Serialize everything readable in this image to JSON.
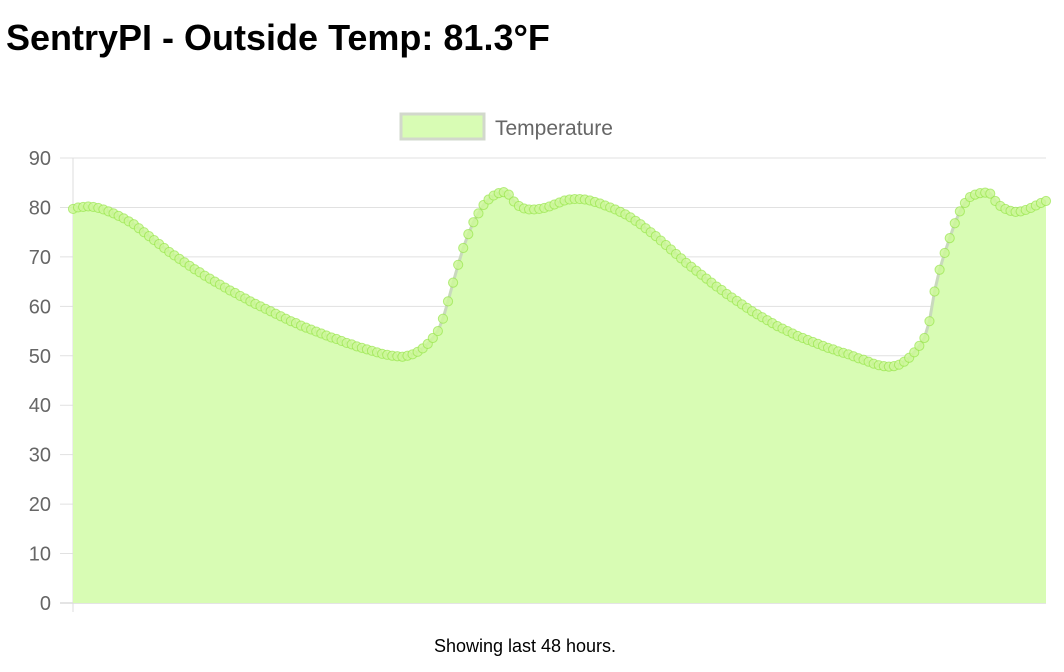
{
  "header": {
    "title": "SentryPI - Outside Temp: 81.3°F"
  },
  "footer": {
    "caption": "Showing last 48 hours."
  },
  "colors": {
    "fill": "#d8fcb4",
    "line": "#c9d9bd",
    "point_fill": "#cdf79a",
    "point_stroke": "#8fe23e",
    "grid": "#e1e1e1",
    "axis_text": "#666666"
  },
  "chart_data": {
    "type": "line",
    "title": "",
    "xlabel": "",
    "ylabel": "",
    "ylim": [
      0,
      90
    ],
    "y_ticks": [
      0,
      10,
      20,
      30,
      40,
      50,
      60,
      70,
      80,
      90
    ],
    "grid": true,
    "legend_position": "top-center",
    "x_tick_labels_visible": false,
    "series": [
      {
        "name": "Temperature",
        "filled": true,
        "values": [
          79.7,
          80.0,
          80.1,
          80.2,
          80.1,
          79.9,
          79.6,
          79.2,
          78.8,
          78.3,
          77.8,
          77.2,
          76.6,
          75.8,
          75.0,
          74.2,
          73.4,
          72.6,
          71.8,
          71.0,
          70.3,
          69.6,
          68.9,
          68.2,
          67.5,
          66.9,
          66.2,
          65.6,
          65.0,
          64.4,
          63.8,
          63.2,
          62.7,
          62.1,
          61.6,
          61.0,
          60.5,
          60.0,
          59.5,
          59.0,
          58.5,
          58.0,
          57.5,
          57.0,
          56.6,
          56.1,
          55.7,
          55.3,
          54.9,
          54.5,
          54.1,
          53.7,
          53.4,
          53.0,
          52.6,
          52.3,
          51.9,
          51.6,
          51.3,
          51.0,
          50.7,
          50.4,
          50.2,
          50.0,
          49.9,
          49.8,
          50.0,
          50.3,
          50.8,
          51.5,
          52.4,
          53.6,
          55.0,
          57.5,
          61.0,
          64.8,
          68.4,
          71.8,
          74.6,
          77.0,
          78.8,
          80.5,
          81.6,
          82.4,
          82.9,
          83.1,
          82.6,
          81.2,
          80.3,
          79.8,
          79.6,
          79.6,
          79.7,
          79.9,
          80.2,
          80.6,
          81.0,
          81.4,
          81.6,
          81.7,
          81.7,
          81.6,
          81.4,
          81.1,
          80.8,
          80.4,
          80.0,
          79.6,
          79.1,
          78.6,
          78.0,
          77.3,
          76.6,
          75.8,
          75.0,
          74.2,
          73.3,
          72.4,
          71.5,
          70.6,
          69.7,
          68.8,
          68.0,
          67.2,
          66.4,
          65.6,
          64.8,
          64.0,
          63.3,
          62.5,
          61.8,
          61.1,
          60.4,
          59.7,
          59.0,
          58.4,
          57.8,
          57.2,
          56.6,
          56.0,
          55.5,
          55.0,
          54.5,
          54.0,
          53.6,
          53.2,
          52.8,
          52.4,
          52.0,
          51.6,
          51.3,
          50.9,
          50.6,
          50.3,
          49.9,
          49.5,
          49.2,
          48.8,
          48.4,
          48.1,
          47.9,
          47.8,
          47.9,
          48.2,
          48.8,
          49.6,
          50.7,
          52.0,
          53.6,
          57.0,
          63.0,
          67.4,
          70.8,
          73.8,
          76.8,
          79.2,
          80.9,
          82.1,
          82.6,
          82.9,
          83.0,
          82.8,
          81.3,
          80.3,
          79.7,
          79.3,
          79.1,
          79.2,
          79.5,
          79.9,
          80.4,
          80.9,
          81.3
        ]
      }
    ]
  }
}
